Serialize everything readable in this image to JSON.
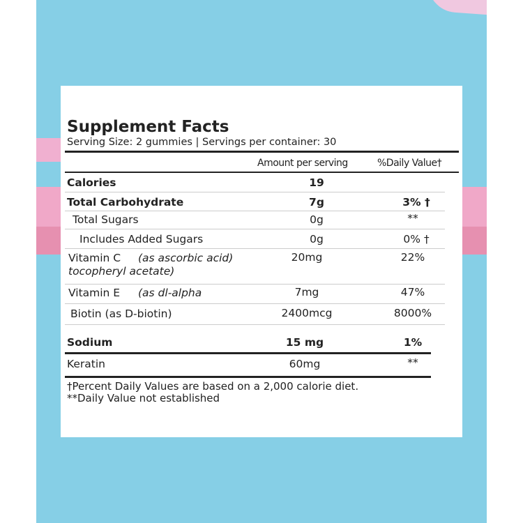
{
  "title": "Supplement Facts",
  "serving": "Serving Size: 2 gummies | Servings per container: 30",
  "header": {
    "amount": "Amount per serving",
    "dv": "%Daily Value†"
  },
  "rows": [
    {
      "name": "Calories",
      "amount": "19",
      "dv": ""
    },
    {
      "name": "Total Carbohydrate",
      "amount": "7g",
      "dv": "3% †"
    },
    {
      "name": "Total Sugars",
      "amount": "0g",
      "dv": "**"
    },
    {
      "name": "Includes Added Sugars",
      "amount": "0g",
      "dv": "0% †"
    },
    {
      "name": "Vitamin C",
      "note": "(as ascorbic acid)",
      "note2": "tocopheryl acetate)",
      "amount": "20mg",
      "dv": "22%"
    },
    {
      "name": "Vitamin E",
      "note": "(as dl-alpha",
      "amount": "7mg",
      "dv": "47%"
    },
    {
      "name": "Biotin (as D-biotin)",
      "amount": "2400mcg",
      "dv": "8000%"
    },
    {
      "name": "Sodium",
      "amount": "15 mg",
      "dv": "1%"
    },
    {
      "name": "Keratin",
      "amount": "60mg",
      "dv": "**"
    }
  ],
  "footnotes": [
    "†Percent Daily Values are based on a 2,000 calorie diet.",
    "**Daily Value not established"
  ],
  "colors": {
    "background_blue": "#86cfe6",
    "pink_light": "#f0a8c8",
    "pink_dark": "#e690b0"
  }
}
